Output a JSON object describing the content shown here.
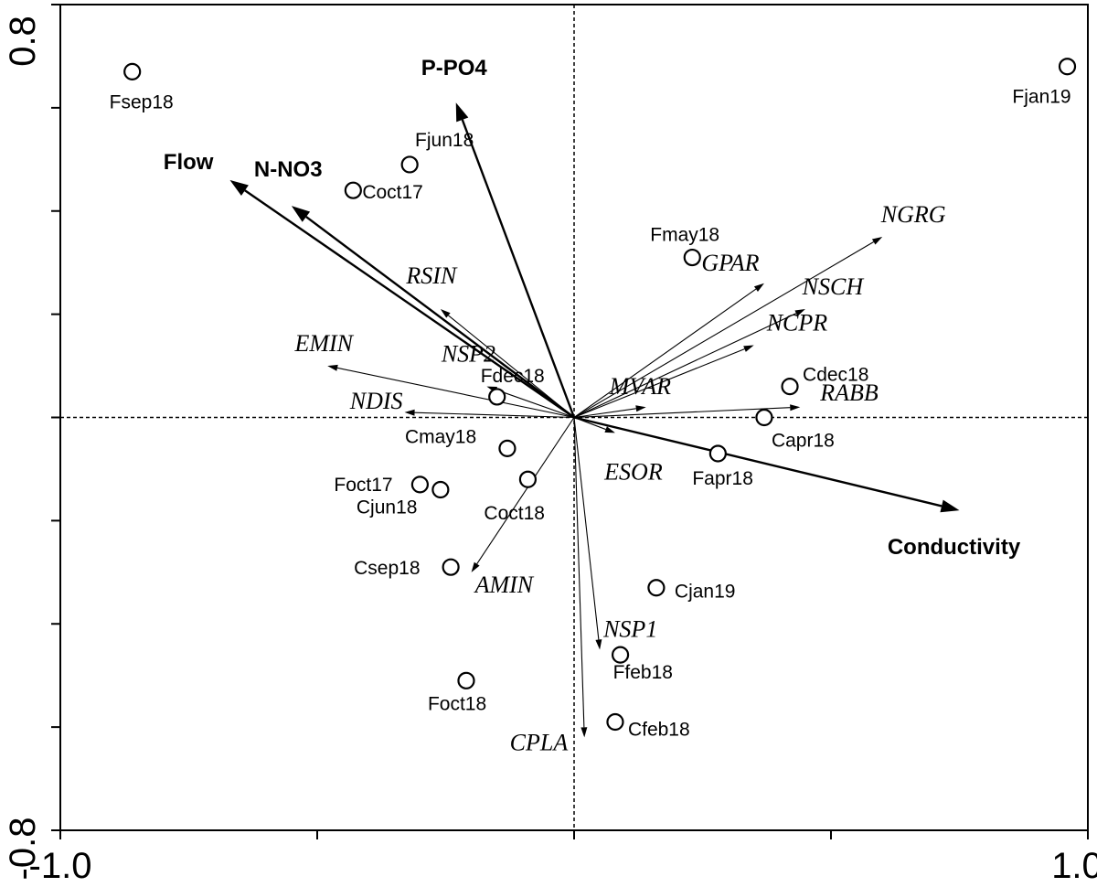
{
  "chart_data": {
    "type": "scatter",
    "subtype": "ordination-biplot",
    "title": "",
    "xlabel": "",
    "ylabel": "",
    "xlim": [
      -1.0,
      1.0
    ],
    "ylim": [
      -0.8,
      0.8
    ],
    "x_tick_labels": [
      "-1.0",
      "1.0"
    ],
    "y_tick_labels": [
      "0.8",
      "-0.8"
    ],
    "reference_lines": {
      "x": 0,
      "y": 0,
      "style": "dashed"
    },
    "sites": [
      {
        "label": "Fsep18",
        "x": -0.86,
        "y": 0.67
      },
      {
        "label": "Fjan19",
        "x": 0.96,
        "y": 0.68
      },
      {
        "label": "Fjun18",
        "x": -0.32,
        "y": 0.49
      },
      {
        "label": "Coct17",
        "x": -0.43,
        "y": 0.44
      },
      {
        "label": "Fmay18",
        "x": 0.23,
        "y": 0.31
      },
      {
        "label": "Fdec18",
        "x": -0.15,
        "y": 0.04
      },
      {
        "label": "Cdec18",
        "x": 0.42,
        "y": 0.06
      },
      {
        "label": "Capr18",
        "x": 0.37,
        "y": 0.0
      },
      {
        "label": "Cmay18",
        "x": -0.13,
        "y": -0.06
      },
      {
        "label": "Fapr18",
        "x": 0.28,
        "y": -0.07
      },
      {
        "label": "Foct17",
        "x": -0.3,
        "y": -0.13
      },
      {
        "label": "Cjun18",
        "x": -0.26,
        "y": -0.14
      },
      {
        "label": "Coct18",
        "x": -0.09,
        "y": -0.12
      },
      {
        "label": "Csep18",
        "x": -0.24,
        "y": -0.29
      },
      {
        "label": "Cjan19",
        "x": 0.16,
        "y": -0.33
      },
      {
        "label": "Ffeb18",
        "x": 0.09,
        "y": -0.46
      },
      {
        "label": "Foct18",
        "x": -0.21,
        "y": -0.51
      },
      {
        "label": "Cfeb18",
        "x": 0.08,
        "y": -0.59
      }
    ],
    "environmental_vectors": [
      {
        "label": "P-PO4",
        "x": -0.23,
        "y": 0.61
      },
      {
        "label": "Flow",
        "x": -0.67,
        "y": 0.46
      },
      {
        "label": "N-NO3",
        "x": -0.55,
        "y": 0.41
      },
      {
        "label": "Conductivity",
        "x": 0.75,
        "y": -0.18
      }
    ],
    "species_vectors": [
      {
        "label": "NGRG",
        "x": 0.6,
        "y": 0.35
      },
      {
        "label": "GPAR",
        "x": 0.37,
        "y": 0.26
      },
      {
        "label": "NSCH",
        "x": 0.45,
        "y": 0.21
      },
      {
        "label": "NCPR",
        "x": 0.35,
        "y": 0.14
      },
      {
        "label": "RSIN",
        "x": -0.26,
        "y": 0.21
      },
      {
        "label": "EMIN",
        "x": -0.48,
        "y": 0.1
      },
      {
        "label": "NSP2",
        "x": -0.17,
        "y": 0.06
      },
      {
        "label": "NDIS",
        "x": -0.33,
        "y": 0.01
      },
      {
        "label": "MVAR",
        "x": 0.14,
        "y": 0.02
      },
      {
        "label": "RABB",
        "x": 0.44,
        "y": 0.02
      },
      {
        "label": "ESOR",
        "x": 0.08,
        "y": -0.03
      },
      {
        "label": "AMIN",
        "x": -0.2,
        "y": -0.3
      },
      {
        "label": "NSP1",
        "x": 0.05,
        "y": -0.45
      },
      {
        "label": "CPLA",
        "x": 0.02,
        "y": -0.62
      }
    ]
  }
}
